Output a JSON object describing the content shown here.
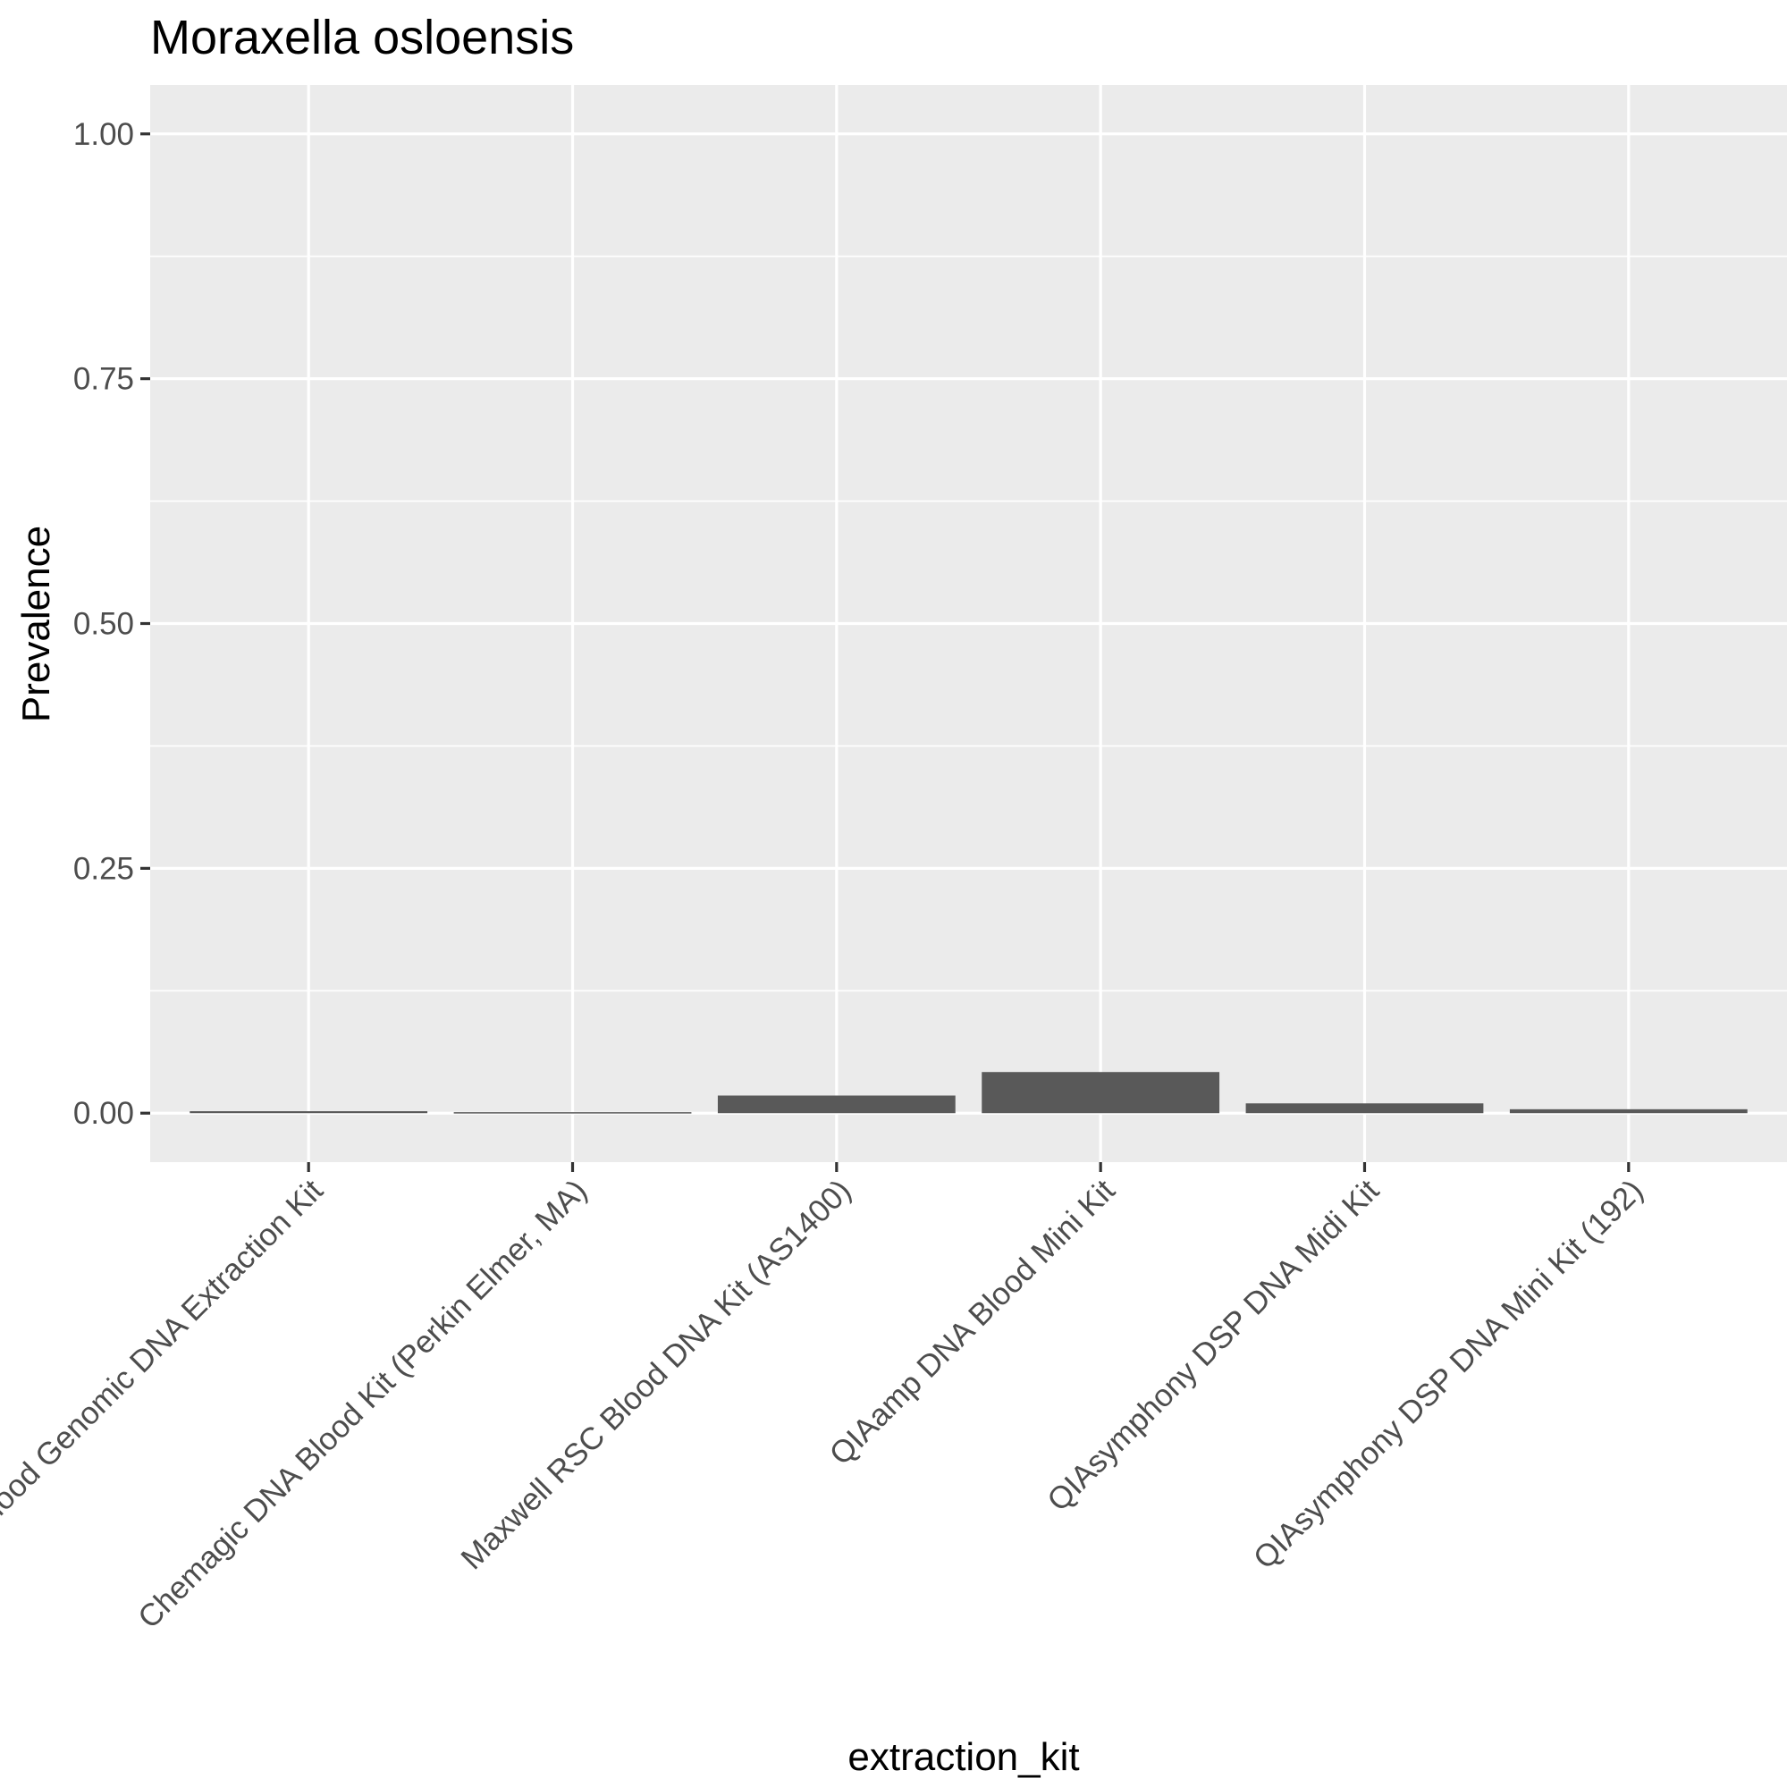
{
  "chart_data": {
    "type": "bar",
    "title": "Moraxella osloensis",
    "xlabel": "extraction_kit",
    "ylabel": "Prevalence",
    "categories": [
      "Blood Genomic DNA Extraction Kit",
      "Chemagic DNA Blood Kit (Perkin Elmer, MA)",
      "Maxwell RSC Blood DNA Kit (AS1400)",
      "QIAamp DNA Blood Mini Kit",
      "QIAsymphony DSP DNA Midi Kit",
      "QIAsymphony DSP DNA Mini Kit (192)"
    ],
    "values": [
      0.002,
      0.001,
      0.018,
      0.042,
      0.01,
      0.004
    ],
    "ylim": [
      -0.05,
      1.05
    ],
    "yticks": [
      0,
      0.25,
      0.5,
      0.75,
      1.0
    ],
    "ytick_labels": [
      "0.00",
      "0.25",
      "0.50",
      "0.75",
      "1.00"
    ],
    "grid": true,
    "legend": "none",
    "colors": {
      "bar": "#595959",
      "panel": "#ebebeb",
      "grid": "#ffffff",
      "tick": "#333333",
      "tick_label": "#4d4d4d"
    }
  }
}
